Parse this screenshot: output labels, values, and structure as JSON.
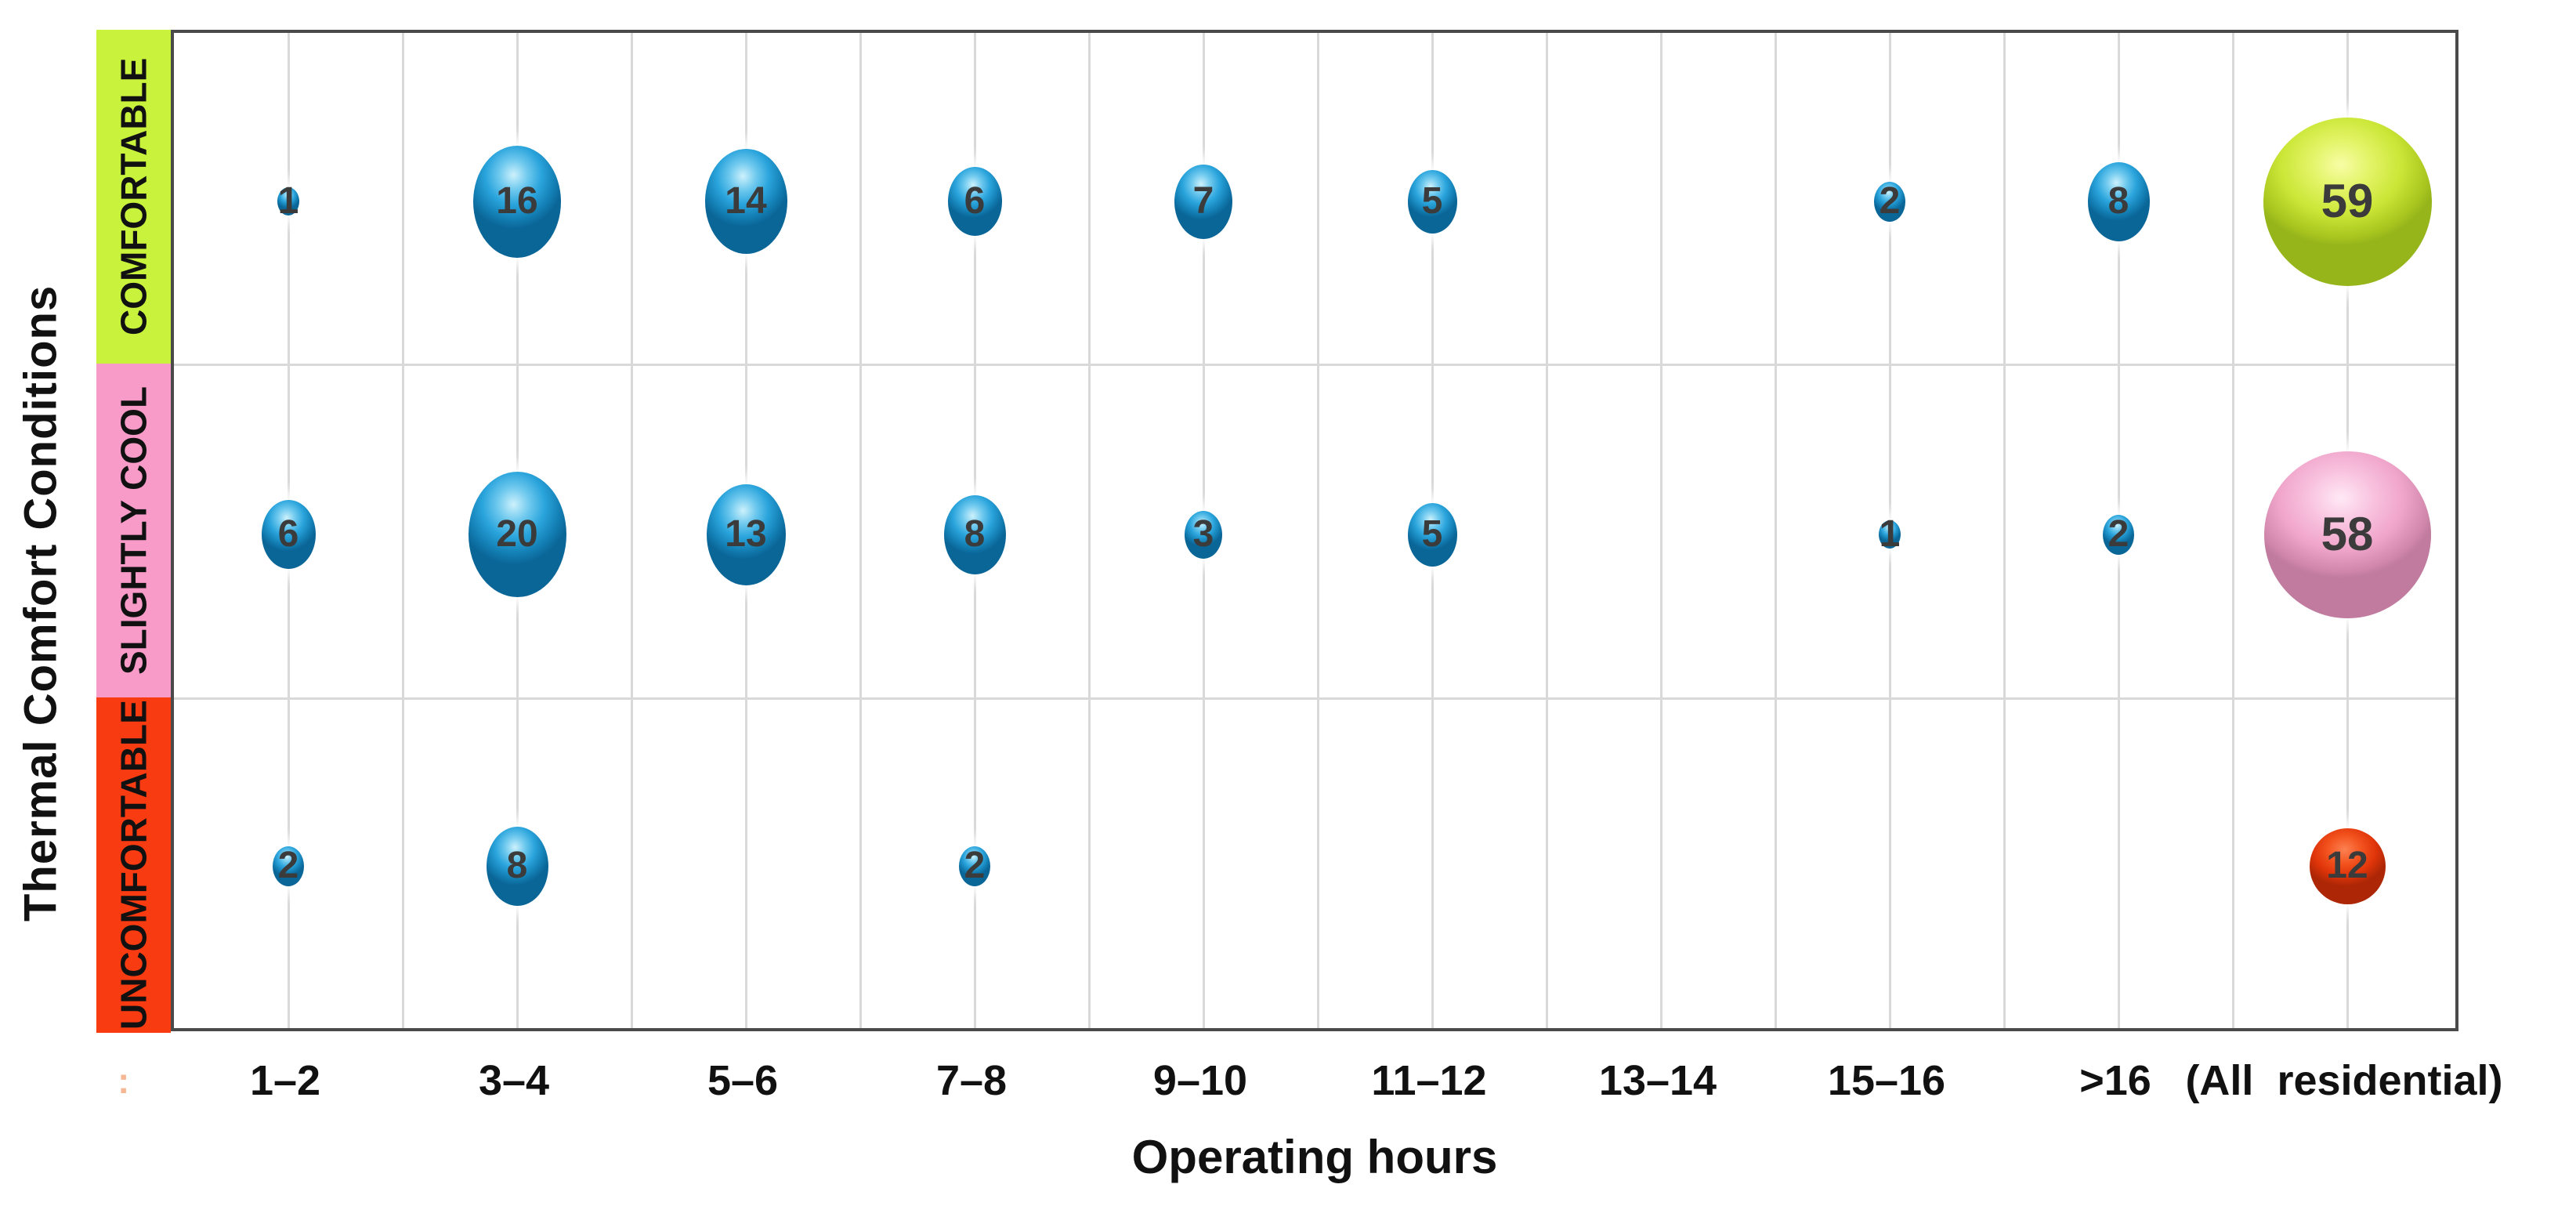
{
  "chart_data": {
    "type": "bubble",
    "title": "",
    "xlabel": "Operating hours",
    "ylabel": "Thermal Comfort Conditions",
    "x_categories": [
      "1–2",
      "3–4",
      "5–6",
      "7–8",
      "9–10",
      "11–12",
      "13–14",
      "15–16",
      ">16",
      "(All  residential)"
    ],
    "grid": true,
    "legend": false,
    "size_rule": "bubble diameter proportional to sqrt(value)",
    "rows": [
      {
        "label": "COMFORTABLE",
        "band_color": "#c9f23d",
        "bubble_color_key": "blue",
        "total_color_key": "green",
        "values": [
          1,
          16,
          14,
          6,
          7,
          5,
          null,
          2,
          8
        ],
        "total": 59
      },
      {
        "label": "SLIGHTLY COOL",
        "band_color": "#f99bc9",
        "bubble_color_key": "blue",
        "total_color_key": "pink",
        "values": [
          6,
          20,
          13,
          8,
          3,
          5,
          null,
          1,
          2
        ],
        "total": 58
      },
      {
        "label": "UNCOMFORTABLE",
        "band_color": "#f93b12",
        "bubble_color_key": "blue",
        "total_color_key": "red",
        "values": [
          2,
          8,
          null,
          2,
          null,
          null,
          null,
          null,
          null
        ],
        "total": 12
      }
    ],
    "colors": {
      "bubble_blue": "#1f9ed6",
      "total_comfortable": "#c6e636",
      "total_slightly_cool": "#f2a9cf",
      "total_uncomfortable": "#e8380d",
      "gridline": "#d9d9d9",
      "plot_border": "#4a4a4a",
      "number_text": "#3b3b3b"
    },
    "stray_axis_mark": ":"
  }
}
